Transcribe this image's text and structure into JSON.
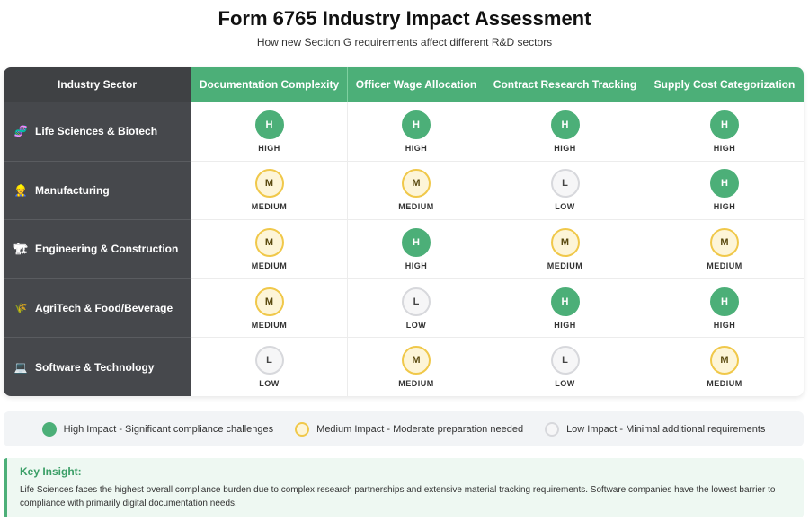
{
  "header": {
    "title": "Form 6765 Industry Impact Assessment",
    "subtitle": "How new Section G requirements affect different R&D sectors"
  },
  "colors": {
    "high": "#4caf78",
    "medium_fill": "#fdf5d8",
    "medium_border": "#f0c84a",
    "low_fill": "#f6f6f7",
    "low_border": "#d7d8dc",
    "row_header_bg": "#46484c",
    "column_header_bg": "#4caf78"
  },
  "chart_data": {
    "type": "heatmap",
    "corner_label": "Industry Sector",
    "columns": [
      "Documentation Complexity",
      "Officer Wage Allocation",
      "Contract Research Tracking",
      "Supply Cost Categorization"
    ],
    "rows": [
      {
        "sector": "Life Sciences & Biotech",
        "icon": "dna-icon",
        "glyph": "🧬",
        "levels": [
          "HIGH",
          "HIGH",
          "HIGH",
          "HIGH"
        ]
      },
      {
        "sector": "Manufacturing",
        "icon": "factory-workers-icon",
        "glyph": "👷",
        "levels": [
          "MEDIUM",
          "MEDIUM",
          "LOW",
          "HIGH"
        ]
      },
      {
        "sector": "Engineering & Construction",
        "icon": "crane-icon",
        "glyph": "🏗",
        "levels": [
          "MEDIUM",
          "HIGH",
          "MEDIUM",
          "MEDIUM"
        ]
      },
      {
        "sector": "AgriTech & Food/Beverage",
        "icon": "wheat-icon",
        "glyph": "🌾",
        "levels": [
          "MEDIUM",
          "LOW",
          "HIGH",
          "HIGH"
        ]
      },
      {
        "sector": "Software & Technology",
        "icon": "laptop-icon",
        "glyph": "💻",
        "levels": [
          "LOW",
          "MEDIUM",
          "LOW",
          "MEDIUM"
        ]
      }
    ],
    "level_letters": {
      "HIGH": "H",
      "MEDIUM": "M",
      "LOW": "L"
    }
  },
  "legend": {
    "high": "High Impact - Significant compliance challenges",
    "medium": "Medium Impact - Moderate preparation needed",
    "low": "Low Impact - Minimal additional requirements"
  },
  "insight": {
    "title": "Key Insight:",
    "text": "Life Sciences faces the highest overall compliance burden due to complex research partnerships and extensive material tracking requirements. Software companies have the lowest barrier to compliance with primarily digital documentation needs."
  }
}
